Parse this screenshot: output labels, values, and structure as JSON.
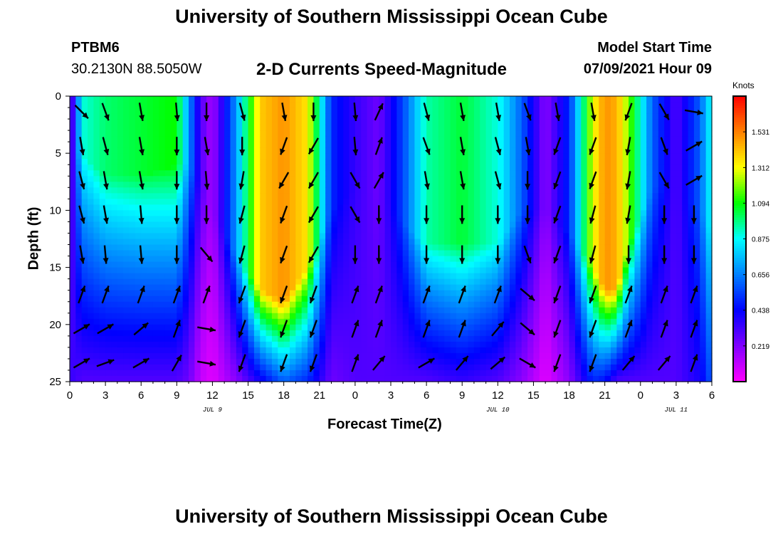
{
  "header": {
    "title": "University of Southern Mississippi Ocean Cube",
    "station_id": "PTBM6",
    "station_coords": "30.2130N  88.5050W",
    "subtitle": "2-D Currents Speed-Magnitude",
    "model_start_label": "Model Start Time",
    "model_start_value": "07/09/2021 Hour 09"
  },
  "footer": {
    "title": "University of Southern Mississippi Ocean Cube"
  },
  "colors": {
    "palette": [
      "#ff00ff",
      "#8000ff",
      "#0000ff",
      "#0080ff",
      "#00ffff",
      "#00ff00",
      "#ffff00",
      "#ff8000",
      "#ff0000"
    ],
    "arrow": "#000000"
  },
  "chart_data": {
    "type": "heatmap",
    "title": "2-D Currents Speed-Magnitude",
    "xlabel": "Forecast Time(Z)",
    "ylabel": "Depth (ft)",
    "x_unit": "hours since 07/09/2021 00Z",
    "xlim": [
      0,
      54
    ],
    "ylim": [
      25,
      0
    ],
    "x_ticks": [
      0,
      3,
      6,
      9,
      12,
      15,
      18,
      21,
      24,
      27,
      30,
      33,
      36,
      39,
      42,
      45,
      48,
      51,
      54
    ],
    "x_tick_labels": [
      "0",
      "3",
      "6",
      "9",
      "12",
      "15",
      "18",
      "21",
      "0",
      "3",
      "6",
      "9",
      "12",
      "15",
      "18",
      "21",
      "0",
      "3",
      "6"
    ],
    "y_ticks": [
      0,
      5,
      10,
      15,
      20,
      25
    ],
    "y_tick_labels": [
      "0",
      "5",
      "10",
      "15",
      "20",
      "25"
    ],
    "date_labels": [
      {
        "hour": 12,
        "label": "JUL 9"
      },
      {
        "hour": 36,
        "label": "JUL 10"
      },
      {
        "hour": 51,
        "label": "JUL 11"
      }
    ],
    "colorbar": {
      "unit": "Knots",
      "tick_values": [
        0.219,
        0.438,
        0.656,
        0.875,
        1.094,
        1.312,
        1.531
      ],
      "tick_labels": [
        "0.219",
        "0.438",
        "0.656",
        "0.875",
        "1.094",
        "1.312",
        "1.531"
      ],
      "min": 0.0,
      "max": 1.75
    },
    "speed_profile": {
      "description": "speed (knots) by time column: surface value and bottom value; depth of fastest layer",
      "hours": [
        0,
        1,
        3,
        6,
        9,
        10,
        11,
        12,
        14,
        16,
        18,
        20,
        22,
        24,
        26,
        28,
        30,
        33,
        36,
        38,
        40,
        42,
        44,
        45,
        46,
        47,
        49,
        51,
        53,
        54
      ],
      "surface": [
        0.15,
        0.9,
        1.0,
        1.05,
        1.1,
        0.7,
        0.3,
        0.15,
        0.7,
        1.4,
        1.5,
        1.35,
        0.5,
        0.35,
        0.25,
        0.55,
        0.95,
        1.05,
        0.9,
        0.6,
        0.2,
        0.5,
        1.3,
        1.5,
        1.45,
        1.2,
        0.6,
        0.3,
        0.6,
        0.9
      ],
      "bottom": [
        0.35,
        0.3,
        0.3,
        0.3,
        0.3,
        0.25,
        0.1,
        0.05,
        0.2,
        0.4,
        0.6,
        0.5,
        0.25,
        0.3,
        0.3,
        0.3,
        0.3,
        0.35,
        0.3,
        0.2,
        0.05,
        0.2,
        0.5,
        0.45,
        0.3,
        0.3,
        0.3,
        0.3,
        0.4,
        0.6
      ],
      "fast_depth": [
        5,
        5,
        7,
        7,
        6,
        6,
        8,
        10,
        14,
        17,
        18,
        15,
        10,
        8,
        8,
        11,
        13,
        13,
        13,
        10,
        10,
        12,
        15,
        17,
        17,
        13,
        8,
        8,
        10,
        12
      ]
    },
    "vectors": {
      "depths": [
        1,
        4,
        7,
        10,
        13.5,
        17,
        20,
        23
      ],
      "hours": [
        1,
        3,
        6,
        9,
        11.5,
        14.5,
        18,
        20.5,
        24,
        26,
        30,
        33,
        36,
        38.5,
        41,
        44,
        47,
        50,
        52.5
      ],
      "directions_deg": [
        [
          135,
          160,
          170,
          175,
          180,
          165,
          170,
          180,
          175,
          25,
          165,
          170,
          170,
          160,
          170,
          170,
          200,
          150,
          100
        ],
        [
          170,
          165,
          170,
          180,
          170,
          180,
          200,
          210,
          175,
          20,
          160,
          170,
          165,
          170,
          200,
          200,
          190,
          160,
          60
        ],
        [
          165,
          170,
          170,
          180,
          175,
          190,
          210,
          210,
          150,
          30,
          170,
          170,
          165,
          180,
          200,
          200,
          190,
          150,
          60
        ],
        [
          165,
          170,
          175,
          180,
          180,
          195,
          200,
          210,
          150,
          180,
          180,
          180,
          180,
          180,
          200,
          195,
          190,
          180,
          180
        ],
        [
          170,
          175,
          175,
          180,
          140,
          195,
          200,
          210,
          180,
          180,
          180,
          180,
          180,
          160,
          200,
          195,
          180,
          180,
          180
        ],
        [
          20,
          20,
          20,
          20,
          20,
          200,
          200,
          200,
          20,
          20,
          20,
          20,
          20,
          130,
          200,
          200,
          20,
          20,
          20
        ],
        [
          60,
          60,
          50,
          20,
          100,
          200,
          200,
          200,
          20,
          20,
          20,
          20,
          40,
          130,
          200,
          200,
          20,
          20,
          20
        ],
        [
          60,
          70,
          60,
          30,
          100,
          200,
          200,
          200,
          20,
          40,
          60,
          40,
          50,
          120,
          200,
          200,
          40,
          40,
          20
        ]
      ]
    },
    "grid": false,
    "legend_position": "right colorbar"
  }
}
